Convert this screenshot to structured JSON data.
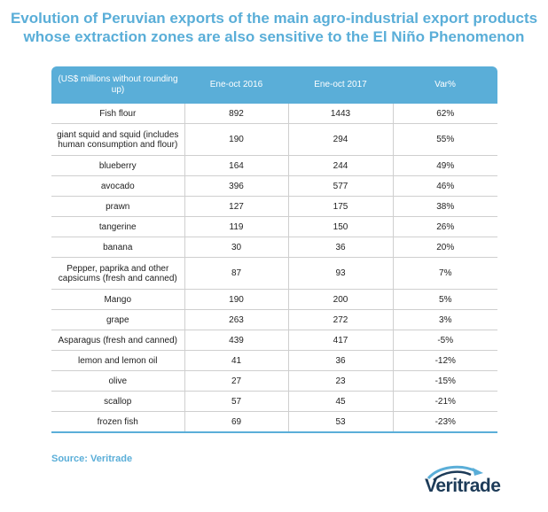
{
  "title_lines": [
    "Evolution of Peruvian exports of the main agro-industrial export products",
    "whose extraction zones are also sensitive to the El Niño Phenomenon"
  ],
  "source": "Source: Veritrade",
  "logo_text": "Veritrade",
  "colors": {
    "accent": "#5aaed8",
    "logo_dark": "#1d3b58"
  },
  "chart_data": {
    "type": "table",
    "columns": [
      "(US$ millions without rounding up)",
      "Ene-oct 2016",
      "Ene-oct 2017",
      "Var%"
    ],
    "rows": [
      [
        "Fish flour",
        "892",
        "1443",
        "62%"
      ],
      [
        "giant squid and squid (includes human consumption and flour)",
        "190",
        "294",
        "55%"
      ],
      [
        "blueberry",
        "164",
        "244",
        "49%"
      ],
      [
        "avocado",
        "396",
        "577",
        "46%"
      ],
      [
        "prawn",
        "127",
        "175",
        "38%"
      ],
      [
        "tangerine",
        "119",
        "150",
        "26%"
      ],
      [
        "banana",
        "30",
        "36",
        "20%"
      ],
      [
        "Pepper, paprika and other capsicums (fresh and canned)",
        "87",
        "93",
        "7%"
      ],
      [
        "Mango",
        "190",
        "200",
        "5%"
      ],
      [
        "grape",
        "263",
        "272",
        "3%"
      ],
      [
        "Asparagus (fresh and canned)",
        "439",
        "417",
        "-5%"
      ],
      [
        "lemon and lemon oil",
        "41",
        "36",
        "-12%"
      ],
      [
        "olive",
        "27",
        "23",
        "-15%"
      ],
      [
        "scallop",
        "57",
        "45",
        "-21%"
      ],
      [
        "frozen fish",
        "69",
        "53",
        "-23%"
      ]
    ]
  }
}
